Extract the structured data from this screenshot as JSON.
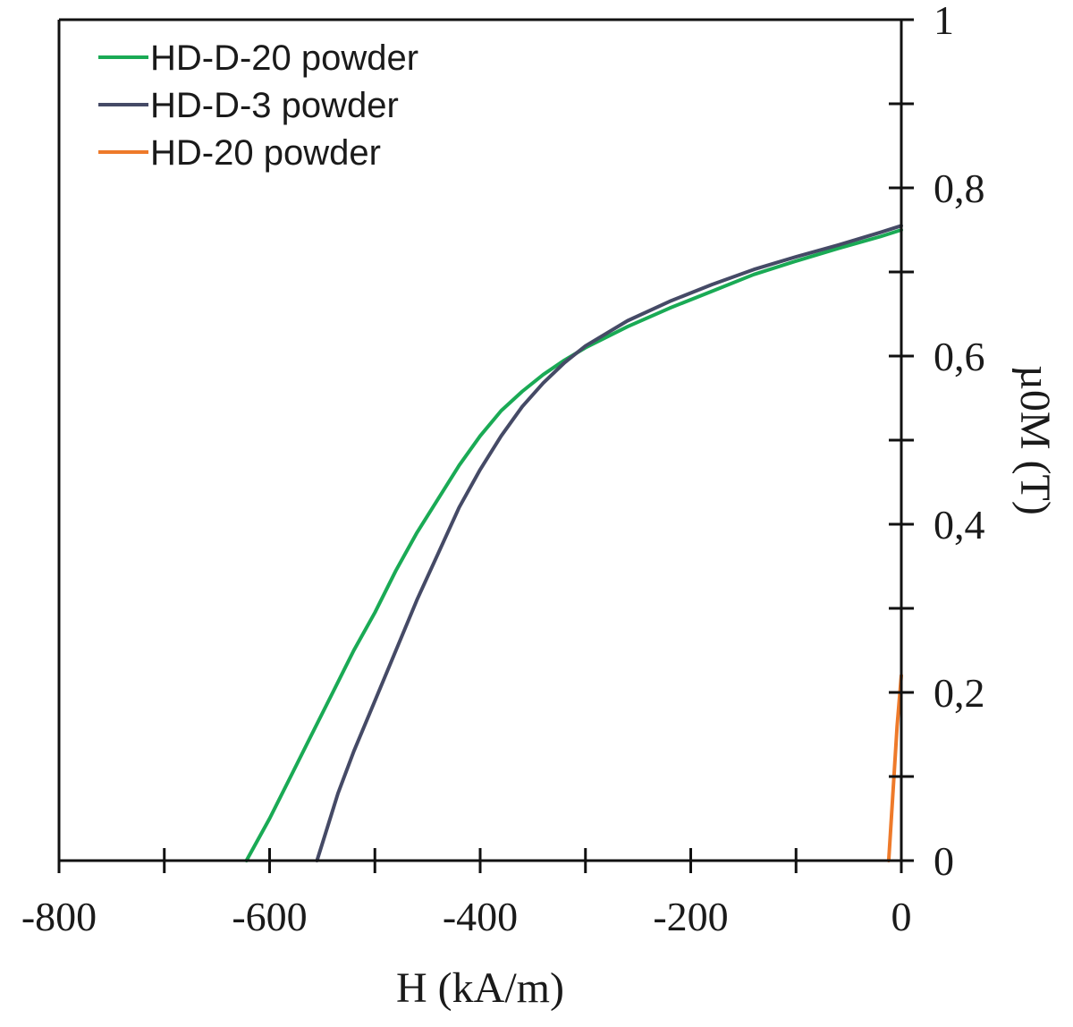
{
  "chart_data": {
    "type": "line",
    "xlabel": "H (kA/m)",
    "ylabel": "µ0M (T)",
    "xlim": [
      -800,
      0
    ],
    "ylim": [
      0,
      1
    ],
    "x_ticks": [
      -800,
      -600,
      -400,
      -200,
      0
    ],
    "x_tick_labels": [
      "-800",
      "-600",
      "-400",
      "-200",
      "0"
    ],
    "x_minor_ticks": [
      -700,
      -500,
      -300,
      -100
    ],
    "y_ticks": [
      0,
      0.2,
      0.4,
      0.6,
      0.8,
      1
    ],
    "y_tick_labels": [
      "0",
      "0,2",
      "0,4",
      "0,6",
      "0,8",
      "1"
    ],
    "y_minor_ticks": [
      0.1,
      0.3,
      0.5,
      0.7,
      0.9
    ],
    "grid": false,
    "legend_position": "top-left",
    "series": [
      {
        "name": "HD-D-20 powder",
        "color": "#1aaa55",
        "x": [
          -622,
          -600,
          -580,
          -560,
          -540,
          -520,
          -500,
          -480,
          -460,
          -440,
          -420,
          -400,
          -380,
          -360,
          -340,
          -320,
          -300,
          -260,
          -220,
          -180,
          -140,
          -100,
          -60,
          -20,
          0
        ],
        "y": [
          0.0,
          0.05,
          0.1,
          0.15,
          0.2,
          0.25,
          0.295,
          0.345,
          0.39,
          0.43,
          0.47,
          0.505,
          0.535,
          0.558,
          0.578,
          0.595,
          0.61,
          0.635,
          0.657,
          0.677,
          0.697,
          0.713,
          0.728,
          0.742,
          0.75
        ]
      },
      {
        "name": "HD-D-3 powder",
        "color": "#454a66",
        "x": [
          -555,
          -545,
          -535,
          -520,
          -500,
          -480,
          -460,
          -440,
          -420,
          -400,
          -380,
          -360,
          -340,
          -320,
          -300,
          -260,
          -220,
          -180,
          -140,
          -100,
          -60,
          -20,
          0
        ],
        "y": [
          0.0,
          0.04,
          0.08,
          0.13,
          0.19,
          0.25,
          0.31,
          0.365,
          0.42,
          0.465,
          0.505,
          0.54,
          0.568,
          0.592,
          0.612,
          0.642,
          0.665,
          0.685,
          0.703,
          0.718,
          0.732,
          0.747,
          0.755
        ]
      },
      {
        "name": "HD-20 powder",
        "color": "#ee7a2a",
        "x": [
          -12,
          -8,
          -4,
          0
        ],
        "y": [
          0.0,
          0.08,
          0.16,
          0.22
        ]
      }
    ]
  }
}
